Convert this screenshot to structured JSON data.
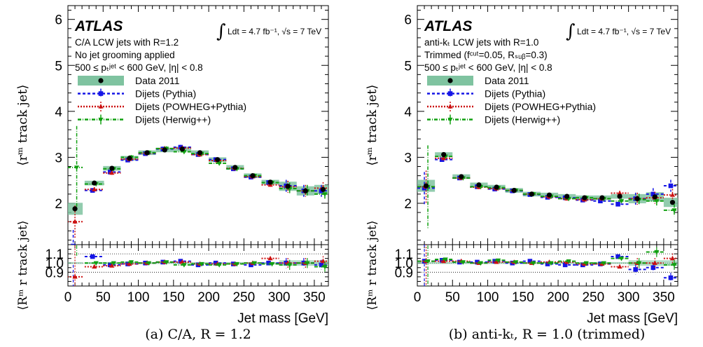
{
  "chart_data": [
    {
      "type": "scatter",
      "caption": "(a) C/A, R = 1.2",
      "experiment": "ATLAS",
      "lumi_text": "Ldt = 4.7 fb⁻¹, √s = 7 TeV",
      "info_lines": [
        "C/A LCW jets with R=1.2",
        "No jet grooming applied",
        "500 ≤ pₜʲᵉᵗ < 600 GeV, |η| < 0.8"
      ],
      "ylabel_top": "⟨rᵐ track jet⟩",
      "ylabel_ratio": "⟨Rᵐ r track jet⟩",
      "xlabel": "Jet mass [GeV]",
      "xlim": [
        0,
        370
      ],
      "ylim": [
        1.1,
        6.3
      ],
      "ratio_ylim": [
        0.75,
        1.2
      ],
      "xticks": [
        0,
        50,
        100,
        150,
        200,
        250,
        300,
        350
      ],
      "yticks": [
        2,
        3,
        4,
        5,
        6
      ],
      "ratio_yticks": [
        "0.9",
        "1.0",
        "1.1"
      ],
      "x": [
        10,
        37.5,
        62.5,
        87.5,
        112.5,
        137.5,
        162.5,
        187.5,
        212.5,
        237.5,
        262.5,
        287.5,
        312.5,
        337.5,
        362.5
      ],
      "series": [
        {
          "name": "Data 2011",
          "values": [
            1.88,
            2.44,
            2.76,
            2.98,
            3.1,
            3.16,
            3.18,
            3.1,
            2.95,
            2.78,
            2.6,
            2.46,
            2.37,
            2.27,
            2.3
          ]
        },
        {
          "name": "Dijets (Pythia)",
          "values": [
            1.07,
            2.28,
            2.68,
            2.94,
            3.08,
            3.18,
            3.22,
            3.06,
            2.95,
            2.75,
            2.57,
            2.45,
            2.38,
            2.27,
            2.27
          ]
        },
        {
          "name": "Dijets (POWHEG+Pythia)",
          "values": [
            1.6,
            2.3,
            2.66,
            2.96,
            3.09,
            3.19,
            3.2,
            3.06,
            2.93,
            2.76,
            2.58,
            2.4,
            2.36,
            2.27,
            2.33
          ]
        },
        {
          "name": "Dijets (Herwig++)",
          "values": [
            2.78,
            2.42,
            2.75,
            3.0,
            3.1,
            3.19,
            3.12,
            3.08,
            2.87,
            2.75,
            2.6,
            2.45,
            2.32,
            2.27,
            2.2
          ]
        }
      ],
      "ratio_series": [
        {
          "name": "Dijets (Pythia)",
          "values": [
            0.58,
            1.07,
            0.98,
            0.99,
            1.0,
            1.01,
            1.02,
            0.98,
            1.0,
            0.99,
            0.98,
            1.0,
            1.0,
            1.0,
            0.98
          ]
        },
        {
          "name": "Dijets (POWHEG+Pythia)",
          "values": [
            0.85,
            0.96,
            0.97,
            0.99,
            1.0,
            1.01,
            1.01,
            0.99,
            0.99,
            0.99,
            1.0,
            1.05,
            1.0,
            1.0,
            1.02
          ]
        },
        {
          "name": "Dijets (Herwig++)",
          "values": [
            1.48,
            1.0,
            1.0,
            1.01,
            1.0,
            1.01,
            0.98,
            0.99,
            0.98,
            0.99,
            1.0,
            0.99,
            0.98,
            1.0,
            0.96
          ]
        }
      ]
    },
    {
      "type": "scatter",
      "caption": "(b) anti-kₜ, R = 1.0 (trimmed)",
      "experiment": "ATLAS",
      "lumi_text": "Ldt = 4.7 fb⁻¹, √s = 7 TeV",
      "info_lines": [
        "anti-kₜ LCW jets with R=1.0",
        "Trimmed (fᶜᵘᵗ=0.05, Rₛᵤᵦ=0.3)",
        "500 ≤ pₜʲᵉᵗ < 600 GeV, |η| < 0.8"
      ],
      "ylabel_top": "⟨rᵐ track jet⟩",
      "ylabel_ratio": "⟨Rᵐ r track jet⟩",
      "xlabel": "Jet mass [GeV]",
      "xlim": [
        0,
        370
      ],
      "ylim": [
        1.1,
        6.3
      ],
      "ratio_ylim": [
        0.75,
        1.2
      ],
      "xticks": [
        0,
        50,
        100,
        150,
        200,
        250,
        300,
        350
      ],
      "yticks": [
        2,
        3,
        4,
        5,
        6
      ],
      "ratio_yticks": [
        "0.9",
        "1.0",
        "1.1"
      ],
      "x": [
        12.5,
        37.5,
        62.5,
        87.5,
        112.5,
        137.5,
        162.5,
        187.5,
        212.5,
        237.5,
        262.5,
        287.5,
        312.5,
        337.5,
        362.5
      ],
      "series": [
        {
          "name": "Data 2011",
          "values": [
            2.38,
            3.06,
            2.58,
            2.4,
            2.35,
            2.28,
            2.2,
            2.18,
            2.15,
            2.12,
            2.12,
            2.15,
            2.1,
            2.14,
            2.02
          ]
        },
        {
          "name": "Dijets (Pythia)",
          "values": [
            2.33,
            2.95,
            2.55,
            2.36,
            2.31,
            2.27,
            2.19,
            2.13,
            2.12,
            2.07,
            2.05,
            1.98,
            2.1,
            2.2,
            2.38
          ]
        },
        {
          "name": "Dijets (POWHEG+Pythia)",
          "values": [
            2.36,
            2.98,
            2.55,
            2.35,
            2.32,
            2.28,
            2.2,
            2.14,
            2.1,
            2.08,
            2.1,
            2.22,
            2.1,
            2.12,
            2.18
          ]
        },
        {
          "name": "Dijets (Herwig++)",
          "values": [
            2.36,
            3.02,
            2.55,
            2.36,
            2.34,
            2.28,
            2.2,
            2.15,
            2.1,
            2.12,
            2.1,
            2.05,
            2.08,
            2.05,
            1.85
          ]
        }
      ],
      "ratio_series": [
        {
          "name": "Dijets (Pythia)",
          "values": [
            1.02,
            1.03,
            1.01,
            1.01,
            1.02,
            1.0,
            1.02,
            0.99,
            0.98,
            0.98,
            0.99,
            1.07,
            0.93,
            0.95,
            0.84
          ]
        },
        {
          "name": "Dijets (POWHEG+Pythia)",
          "values": [
            1.02,
            1.02,
            1.02,
            1.0,
            1.01,
            1.01,
            1.0,
            1.01,
            1.01,
            0.99,
            0.99,
            0.96,
            1.0,
            1.0,
            1.05
          ]
        },
        {
          "name": "Dijets (Herwig++)",
          "values": [
            1.02,
            1.04,
            1.01,
            1.0,
            1.03,
            1.01,
            1.0,
            1.0,
            1.02,
            1.0,
            1.0,
            1.05,
            1.0,
            1.12,
            0.98
          ]
        }
      ]
    }
  ],
  "styles": {
    "data_color": "#000000",
    "data_band_color": "#7fc3a0",
    "pythia_color": "#1515e6",
    "powheg_color": "#cc1111",
    "herwig_color": "#11a011"
  }
}
